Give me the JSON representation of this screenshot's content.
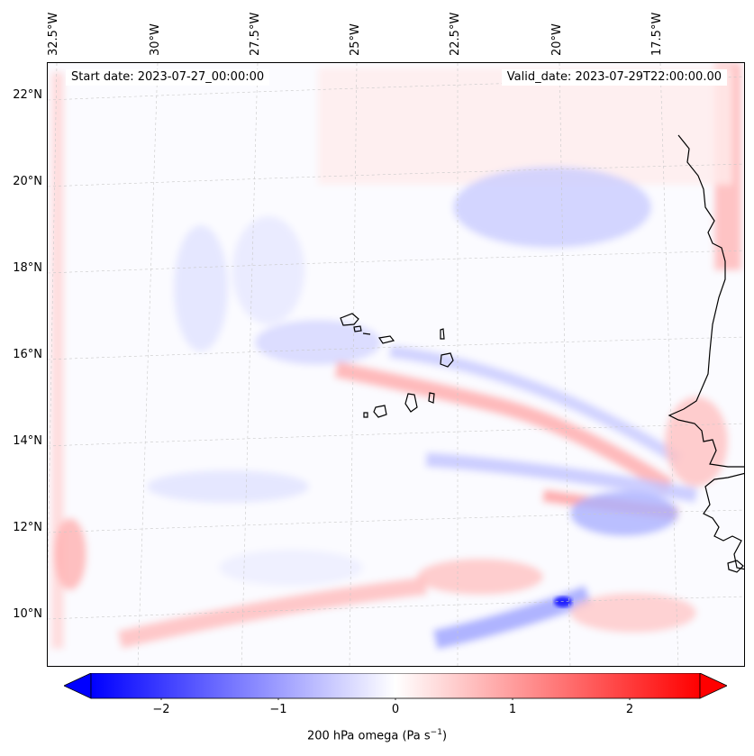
{
  "map": {
    "start_date": "Start date: 2023-07-27_00:00:00",
    "valid_date": "Valid_date: 2023-07-29T22:00:00.00",
    "lon_labels": [
      "32.5°W",
      "30°W",
      "27.5°W",
      "25°W",
      "22.5°W",
      "20°W",
      "17.5°W"
    ],
    "lat_labels": [
      "22°N",
      "20°N",
      "18°N",
      "16°N",
      "14°N",
      "12°N",
      "10°N"
    ],
    "extent": {
      "lon_min": -32.6,
      "lon_max": -16.1,
      "lat_min": 8.9,
      "lat_max": 22.8
    },
    "projection": "lambert-conformal",
    "gridlines": true,
    "field_name": "200 hPa omega",
    "field_min": -2.6,
    "field_max": 2.6
  },
  "colorbar": {
    "label": "200 hPa omega (Pa s",
    "label_sup": "−1",
    "label_close": ")",
    "ticks": [
      "−2",
      "−1",
      "0",
      "1",
      "2"
    ],
    "tick_values": [
      -2,
      -1,
      0,
      1,
      2
    ],
    "min": -2.6,
    "max": 2.6,
    "extend": "both",
    "cmap": "bwr",
    "colors": {
      "low": "#0000ff",
      "mid": "#ffffff",
      "high": "#ff0000"
    }
  },
  "colors": {
    "coast": "#000000",
    "grid": "#bbbbbb",
    "frame": "#000000",
    "background": "#ffffff"
  }
}
